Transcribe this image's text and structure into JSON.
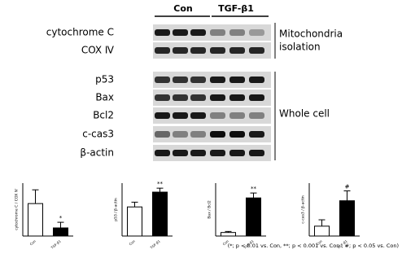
{
  "blot": {
    "groups": [
      "Con",
      "TGF-β1"
    ],
    "rows": [
      "cytochrome C",
      "COX Ⅳ",
      "p53",
      "Bax",
      "Bcl2",
      "c-cas3",
      "β-actin"
    ],
    "sections": [
      "Mitochondria",
      "isolation",
      "Whole cell"
    ]
  },
  "chart_data": [
    {
      "type": "bar",
      "y_label": "cytochrome C / COX Ⅳ",
      "categories": [
        "Con",
        "TGF-β1"
      ],
      "values": [
        0.92,
        0.23
      ],
      "errors": [
        0.39,
        0.16
      ],
      "colors": [
        "#ffffff",
        "#000000"
      ],
      "ylim": [
        0,
        1.5
      ],
      "annotation": "*"
    },
    {
      "type": "bar",
      "y_label": "p53 / β-actin",
      "categories": [
        "Con",
        "TGF-β1"
      ],
      "values": [
        1.1,
        1.66
      ],
      "errors": [
        0.18,
        0.15
      ],
      "colors": [
        "#ffffff",
        "#000000"
      ],
      "ylim": [
        0,
        2
      ],
      "annotation": "**"
    },
    {
      "type": "bar",
      "y_label": "Bax / Bcl2",
      "categories": [
        "Con",
        "TGF-β1"
      ],
      "values": [
        0.1,
        1.08
      ],
      "errors": [
        0.03,
        0.14
      ],
      "colors": [
        "#ffffff",
        "#000000"
      ],
      "ylim": [
        0,
        1.5
      ],
      "annotation": "**"
    },
    {
      "type": "bar",
      "y_label": "c-cas3 / β-actin",
      "categories": [
        "Con",
        "TGF-β1"
      ],
      "values": [
        0.28,
        1.0
      ],
      "errors": [
        0.18,
        0.28
      ],
      "colors": [
        "#ffffff",
        "#000000"
      ],
      "ylim": [
        0,
        1.5
      ],
      "annotation": "#"
    }
  ],
  "footnote": "(*; p < 0.01 vs. Con, **; p < 0.001 vs. Con , #; p < 0.05 vs. Con)"
}
